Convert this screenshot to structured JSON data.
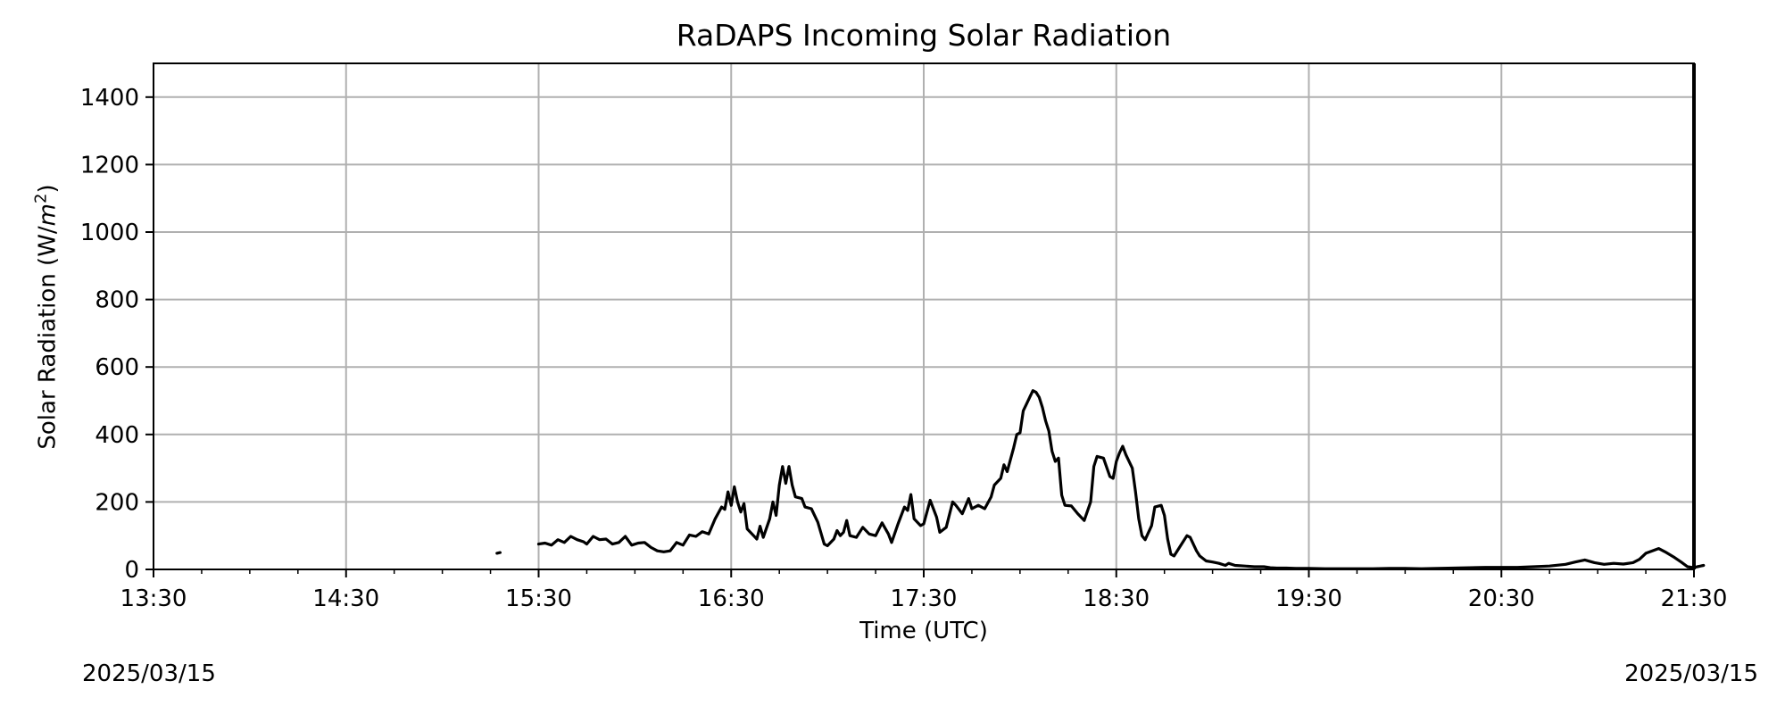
{
  "chart_data": {
    "type": "line",
    "title": "RaDAPS Incoming Solar Radiation",
    "xlabel": "Time (UTC)",
    "ylabel": "Solar Radiation (W/m²)",
    "ylabel_parts": {
      "text": "Solar Radiation (W/",
      "unit_base": "m",
      "unit_exp": "2",
      "close": ")"
    },
    "date_left": "2025/03/15",
    "date_right": "2025/03/15",
    "x_range": [
      "13:30",
      "21:30"
    ],
    "ylim": [
      0,
      1500
    ],
    "x_ticks": [
      "13:30",
      "14:30",
      "15:30",
      "16:30",
      "17:30",
      "18:30",
      "19:30",
      "20:30",
      "21:30"
    ],
    "y_ticks": [
      0,
      200,
      400,
      600,
      800,
      1000,
      1200,
      1400
    ],
    "grid": true,
    "series": [
      {
        "color": "#000000",
        "segments": [
          [
            [
              "15:17",
              48
            ],
            [
              "15:18",
              50
            ]
          ],
          [
            [
              "15:30",
              75
            ],
            [
              "15:32",
              78
            ],
            [
              "15:34",
              72
            ],
            [
              "15:36",
              88
            ],
            [
              "15:38",
              80
            ],
            [
              "15:40",
              98
            ],
            [
              "15:42",
              88
            ],
            [
              "15:44",
              82
            ],
            [
              "15:45",
              75
            ],
            [
              "15:47",
              98
            ],
            [
              "15:49",
              88
            ],
            [
              "15:51",
              90
            ],
            [
              "15:53",
              75
            ],
            [
              "15:55",
              80
            ],
            [
              "15:57",
              98
            ],
            [
              "15:59",
              72
            ],
            [
              "16:01",
              78
            ],
            [
              "16:03",
              80
            ],
            [
              "16:05",
              65
            ],
            [
              "16:07",
              55
            ],
            [
              "16:09",
              52
            ],
            [
              "16:11",
              55
            ],
            [
              "16:13",
              80
            ],
            [
              "16:15",
              72
            ],
            [
              "16:17",
              102
            ],
            [
              "16:19",
              98
            ],
            [
              "16:21",
              112
            ],
            [
              "16:23",
              105
            ],
            [
              "16:25",
              150
            ],
            [
              "16:27",
              185
            ],
            [
              "16:28",
              178
            ],
            [
              "16:29",
              230
            ],
            [
              "16:30",
              190
            ],
            [
              "16:31",
              245
            ],
            [
              "16:32",
              200
            ],
            [
              "16:33",
              170
            ],
            [
              "16:34",
              195
            ],
            [
              "16:35",
              120
            ],
            [
              "16:37",
              100
            ],
            [
              "16:38",
              90
            ],
            [
              "16:39",
              128
            ],
            [
              "16:40",
              95
            ],
            [
              "16:42",
              150
            ],
            [
              "16:43",
              200
            ],
            [
              "16:44",
              160
            ],
            [
              "16:45",
              250
            ],
            [
              "16:46",
              305
            ],
            [
              "16:47",
              255
            ],
            [
              "16:48",
              305
            ],
            [
              "16:49",
              250
            ],
            [
              "16:50",
              215
            ],
            [
              "16:52",
              210
            ],
            [
              "16:53",
              185
            ],
            [
              "16:55",
              180
            ],
            [
              "16:57",
              140
            ],
            [
              "16:59",
              75
            ],
            [
              "17:00",
              70
            ],
            [
              "17:02",
              90
            ],
            [
              "17:03",
              115
            ],
            [
              "17:04",
              100
            ],
            [
              "17:05",
              110
            ],
            [
              "17:06",
              145
            ],
            [
              "17:07",
              100
            ],
            [
              "17:09",
              95
            ],
            [
              "17:11",
              125
            ],
            [
              "17:13",
              105
            ],
            [
              "17:15",
              100
            ],
            [
              "17:17",
              138
            ],
            [
              "17:19",
              105
            ],
            [
              "17:20",
              80
            ],
            [
              "17:22",
              135
            ],
            [
              "17:24",
              185
            ],
            [
              "17:25",
              175
            ],
            [
              "17:26",
              222
            ],
            [
              "17:27",
              150
            ],
            [
              "17:29",
              130
            ],
            [
              "17:30",
              135
            ],
            [
              "17:32",
              205
            ],
            [
              "17:34",
              155
            ],
            [
              "17:35",
              110
            ],
            [
              "17:37",
              125
            ],
            [
              "17:39",
              200
            ],
            [
              "17:40",
              190
            ],
            [
              "17:42",
              165
            ],
            [
              "17:44",
              210
            ],
            [
              "17:45",
              180
            ],
            [
              "17:47",
              190
            ],
            [
              "17:49",
              180
            ],
            [
              "17:51",
              215
            ],
            [
              "17:52",
              250
            ],
            [
              "17:54",
              270
            ],
            [
              "17:55",
              310
            ],
            [
              "17:56",
              290
            ],
            [
              "17:58",
              360
            ],
            [
              "17:59",
              400
            ],
            [
              "18:00",
              405
            ],
            [
              "18:01",
              470
            ],
            [
              "18:02",
              490
            ],
            [
              "18:03",
              510
            ],
            [
              "18:04",
              530
            ],
            [
              "18:05",
              525
            ],
            [
              "18:06",
              510
            ],
            [
              "18:07",
              480
            ],
            [
              "18:08",
              440
            ],
            [
              "18:09",
              410
            ],
            [
              "18:10",
              350
            ],
            [
              "18:11",
              320
            ],
            [
              "18:12",
              330
            ],
            [
              "18:13",
              220
            ],
            [
              "18:14",
              190
            ],
            [
              "18:16",
              188
            ],
            [
              "18:18",
              165
            ],
            [
              "18:20",
              145
            ],
            [
              "18:22",
              200
            ],
            [
              "18:23",
              305
            ],
            [
              "18:24",
              335
            ],
            [
              "18:26",
              330
            ],
            [
              "18:28",
              275
            ],
            [
              "18:29",
              270
            ],
            [
              "18:30",
              320
            ],
            [
              "18:31",
              345
            ],
            [
              "18:32",
              365
            ],
            [
              "18:33",
              340
            ],
            [
              "18:35",
              300
            ],
            [
              "18:36",
              230
            ],
            [
              "18:37",
              150
            ],
            [
              "18:38",
              100
            ],
            [
              "18:39",
              88
            ],
            [
              "18:41",
              130
            ],
            [
              "18:42",
              185
            ],
            [
              "18:44",
              190
            ],
            [
              "18:45",
              160
            ],
            [
              "18:46",
              90
            ],
            [
              "18:47",
              45
            ],
            [
              "18:48",
              40
            ],
            [
              "18:50",
              70
            ],
            [
              "18:52",
              100
            ],
            [
              "18:53",
              95
            ],
            [
              "18:55",
              55
            ],
            [
              "18:56",
              40
            ],
            [
              "18:58",
              25
            ],
            [
              "19:00",
              22
            ],
            [
              "19:02",
              18
            ],
            [
              "19:04",
              12
            ],
            [
              "19:05",
              18
            ],
            [
              "19:07",
              12
            ],
            [
              "19:10",
              10
            ],
            [
              "19:13",
              8
            ],
            [
              "19:16",
              8
            ],
            [
              "19:18",
              5
            ],
            [
              "19:20",
              4
            ],
            [
              "19:23",
              4
            ],
            [
              "19:26",
              3
            ],
            [
              "19:30",
              3
            ],
            [
              "19:35",
              2
            ],
            [
              "19:40",
              2
            ],
            [
              "19:45",
              2
            ],
            [
              "19:50",
              2
            ],
            [
              "19:55",
              3
            ],
            [
              "20:00",
              3
            ],
            [
              "20:05",
              2
            ],
            [
              "20:10",
              3
            ],
            [
              "20:15",
              4
            ],
            [
              "20:20",
              5
            ],
            [
              "20:25",
              6
            ],
            [
              "20:30",
              6
            ],
            [
              "20:35",
              6
            ],
            [
              "20:40",
              8
            ],
            [
              "20:45",
              10
            ],
            [
              "20:50",
              15
            ],
            [
              "20:53",
              22
            ],
            [
              "20:56",
              28
            ],
            [
              "20:59",
              20
            ],
            [
              "21:02",
              15
            ],
            [
              "21:05",
              18
            ],
            [
              "21:08",
              16
            ],
            [
              "21:11",
              20
            ],
            [
              "21:13",
              30
            ],
            [
              "21:15",
              48
            ],
            [
              "21:17",
              55
            ],
            [
              "21:19",
              62
            ],
            [
              "21:21",
              52
            ],
            [
              "21:24",
              35
            ],
            [
              "21:26",
              22
            ],
            [
              "21:28",
              8
            ],
            [
              "21:30",
              5
            ],
            [
              "21:31",
              8
            ],
            [
              "21:33",
              12
            ]
          ]
        ]
      }
    ]
  }
}
